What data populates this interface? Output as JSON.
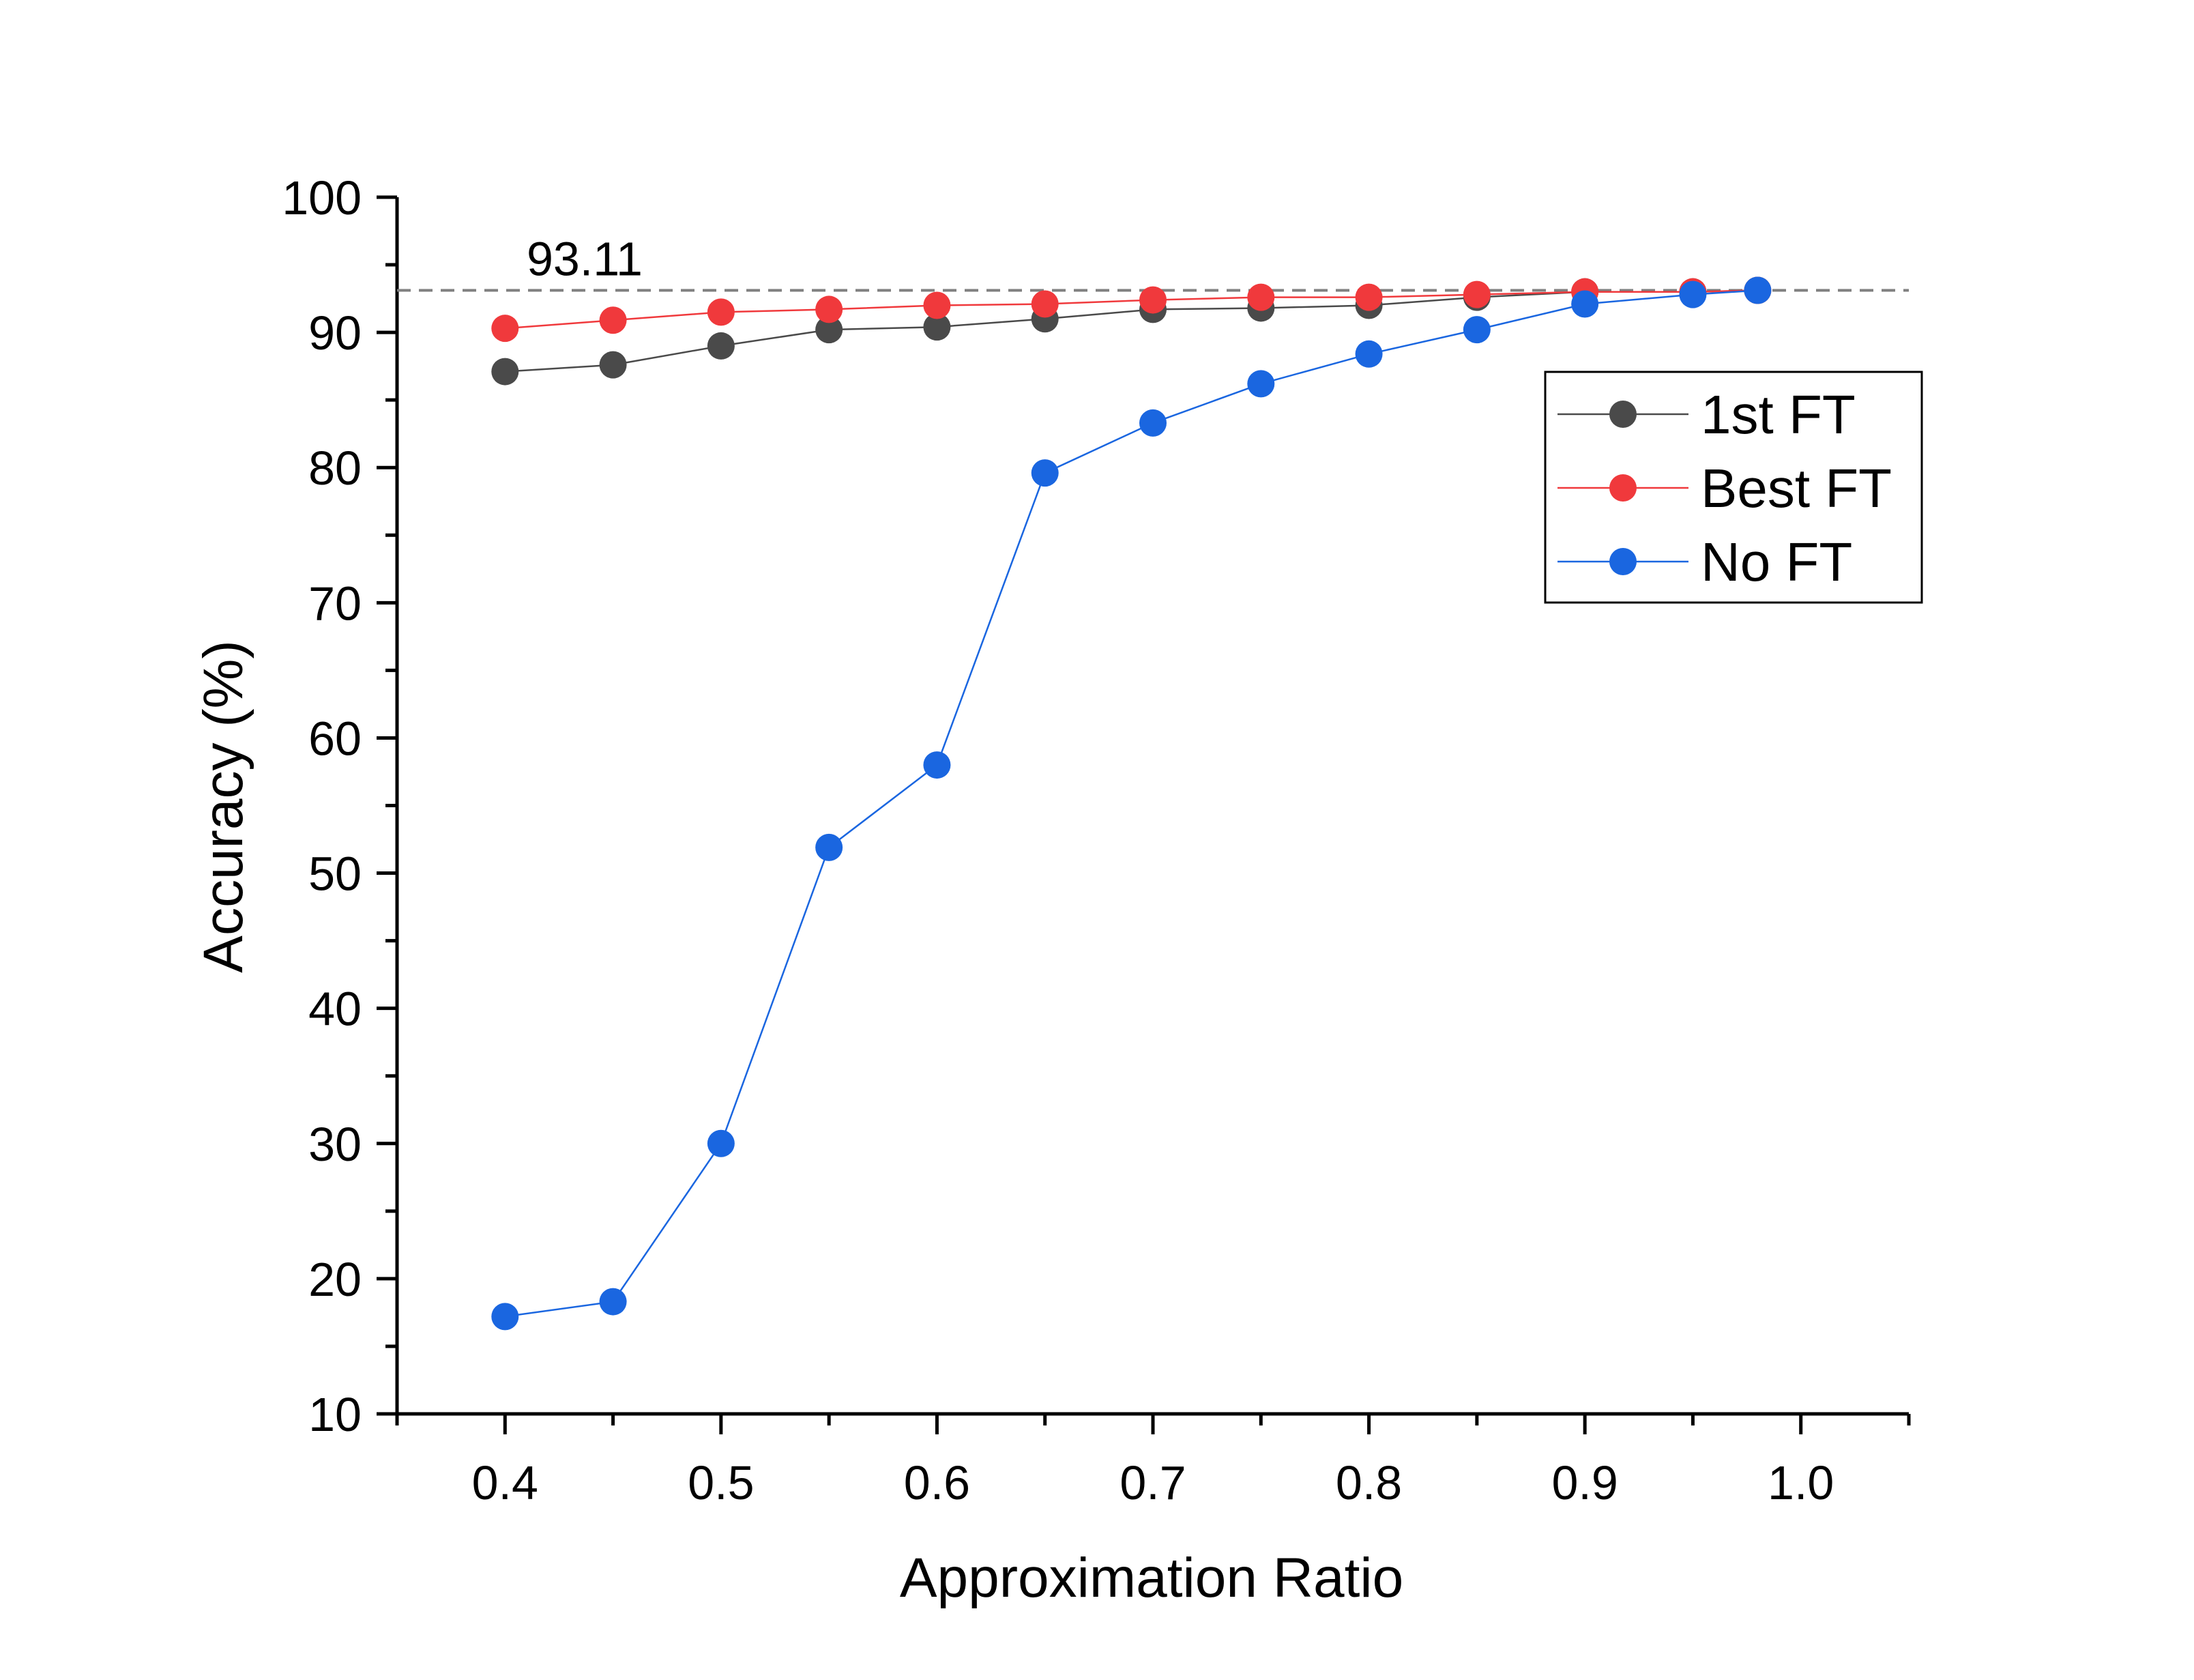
{
  "chart_data": {
    "type": "line",
    "title": "",
    "xlabel": "Approximation Ratio",
    "ylabel": "Accuracy (%)",
    "xlim": [
      0.35,
      1.05
    ],
    "ylim": [
      10,
      100
    ],
    "x_ticks": [
      0.4,
      0.5,
      0.6,
      0.7,
      0.8,
      0.9,
      1.0
    ],
    "x_tick_labels": [
      "0.4",
      "0.5",
      "0.6",
      "0.7",
      "0.8",
      "0.9",
      "1.0"
    ],
    "y_ticks": [
      10,
      20,
      30,
      40,
      50,
      60,
      70,
      80,
      90,
      100
    ],
    "y_tick_labels": [
      "10",
      "20",
      "30",
      "40",
      "50",
      "60",
      "70",
      "80",
      "90",
      "100"
    ],
    "grid": false,
    "legend_position": "top-right",
    "reference_line": {
      "value": 93.11,
      "label": "93.11",
      "color": "#808080",
      "style": "dashed"
    },
    "series": [
      {
        "name": "1st FT",
        "color": "#4a4a4a",
        "x": [
          0.4,
          0.45,
          0.5,
          0.55,
          0.6,
          0.65,
          0.7,
          0.75,
          0.8,
          0.85,
          0.9,
          0.95,
          0.98
        ],
        "values": [
          87.1,
          87.6,
          89.0,
          90.2,
          90.4,
          91.0,
          91.7,
          91.8,
          92.0,
          92.6,
          93.0,
          93.0,
          93.11
        ]
      },
      {
        "name": "Best FT",
        "color": "#f0393c",
        "x": [
          0.4,
          0.45,
          0.5,
          0.55,
          0.6,
          0.65,
          0.7,
          0.75,
          0.8,
          0.85,
          0.9,
          0.95,
          0.98
        ],
        "values": [
          90.3,
          90.9,
          91.5,
          91.7,
          92.0,
          92.1,
          92.4,
          92.6,
          92.6,
          92.8,
          93.0,
          93.0,
          93.11
        ]
      },
      {
        "name": "No FT",
        "color": "#1a66e0",
        "x": [
          0.4,
          0.45,
          0.5,
          0.55,
          0.6,
          0.65,
          0.7,
          0.75,
          0.8,
          0.85,
          0.9,
          0.95,
          0.98
        ],
        "values": [
          17.2,
          18.3,
          30.0,
          51.9,
          58.0,
          79.6,
          83.3,
          86.2,
          88.4,
          90.2,
          92.1,
          92.8,
          93.11
        ]
      }
    ]
  }
}
